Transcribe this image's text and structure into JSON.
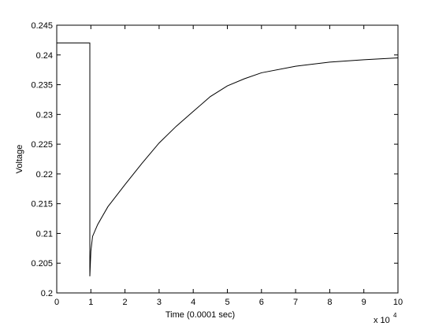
{
  "chart_data": {
    "type": "line",
    "xlabel": "Time (0.0001 sec)",
    "ylabel": "Voltage",
    "x_multiplier": "x 10",
    "x_multiplier_exponent": "4",
    "xlim": [
      0,
      10
    ],
    "xticks": [
      0,
      1,
      2,
      3,
      4,
      5,
      6,
      7,
      8,
      9,
      10
    ],
    "ylim": [
      0.2,
      0.245
    ],
    "yticks": [
      0.2,
      0.205,
      0.21,
      0.215,
      0.22,
      0.225,
      0.23,
      0.235,
      0.24,
      0.245
    ],
    "grid": false,
    "series": [
      {
        "color": "#000000",
        "x": [
          0,
          0.97,
          0.97,
          1.0,
          1.05,
          1.2,
          1.5,
          2,
          2.5,
          3,
          3.5,
          4,
          4.5,
          5,
          5.5,
          6,
          7,
          8,
          9,
          10
        ],
        "values": [
          0.242,
          0.242,
          0.2028,
          0.207,
          0.2095,
          0.2115,
          0.2145,
          0.2182,
          0.2218,
          0.2252,
          0.228,
          0.2305,
          0.233,
          0.2348,
          0.236,
          0.237,
          0.2381,
          0.2388,
          0.2392,
          0.2395
        ]
      }
    ]
  }
}
